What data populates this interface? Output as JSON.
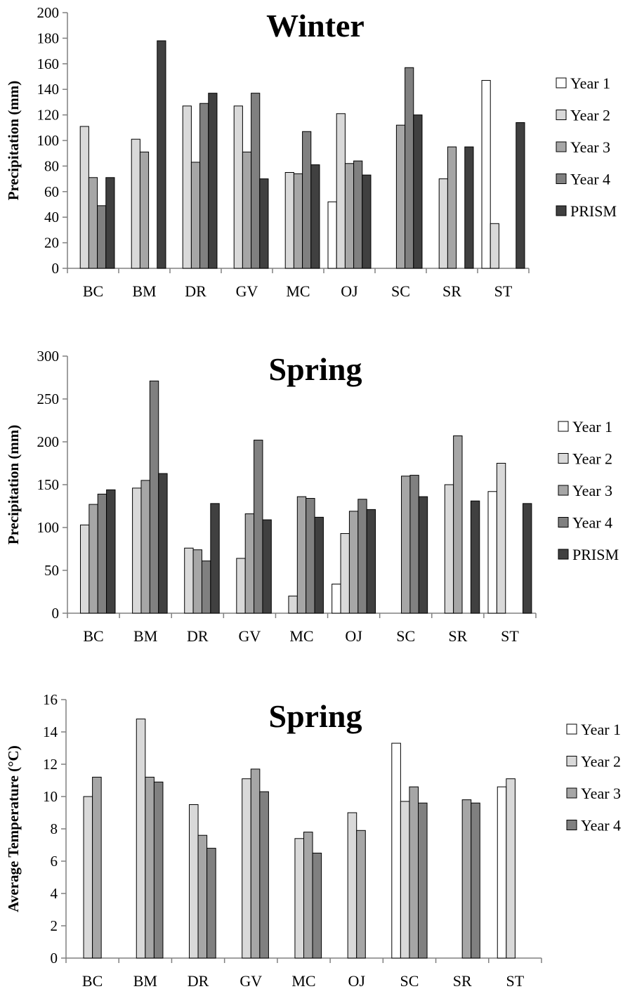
{
  "colors": {
    "Year 1": "#ffffff",
    "Year 2": "#d9d9d9",
    "Year 3": "#a6a6a6",
    "Year 4": "#808080",
    "PRISM": "#404040",
    "axis": "#808080",
    "bar_stroke": "#000000"
  },
  "chart_data": [
    {
      "type": "bar",
      "title": "Winter",
      "xlabel": "",
      "ylabel": "Precipitation (mm)",
      "ylim": [
        0,
        200
      ],
      "yticks": [
        0,
        20,
        40,
        60,
        80,
        100,
        120,
        140,
        160,
        180,
        200
      ],
      "grid": false,
      "legend_position": "right",
      "categories": [
        "BC",
        "BM",
        "DR",
        "GV",
        "MC",
        "OJ",
        "SC",
        "SR",
        "ST"
      ],
      "series": [
        {
          "name": "Year 1",
          "values": [
            null,
            null,
            null,
            null,
            null,
            52,
            null,
            null,
            147
          ]
        },
        {
          "name": "Year 2",
          "values": [
            111,
            101,
            127,
            127,
            75,
            121,
            null,
            70,
            35
          ]
        },
        {
          "name": "Year 3",
          "values": [
            71,
            91,
            83,
            91,
            74,
            82,
            112,
            95,
            null
          ]
        },
        {
          "name": "Year 4",
          "values": [
            49,
            null,
            129,
            137,
            107,
            84,
            157,
            null,
            null
          ]
        },
        {
          "name": "PRISM",
          "values": [
            71,
            178,
            137,
            70,
            81,
            73,
            120,
            95,
            114
          ]
        }
      ]
    },
    {
      "type": "bar",
      "title": "Spring",
      "xlabel": "",
      "ylabel": "Precipitation (mm)",
      "ylim": [
        0,
        300
      ],
      "yticks": [
        0,
        50,
        100,
        150,
        200,
        250,
        300
      ],
      "grid": false,
      "legend_position": "right",
      "categories": [
        "BC",
        "BM",
        "DR",
        "GV",
        "MC",
        "OJ",
        "SC",
        "SR",
        "ST"
      ],
      "series": [
        {
          "name": "Year 1",
          "values": [
            null,
            null,
            null,
            null,
            null,
            34,
            null,
            null,
            142
          ]
        },
        {
          "name": "Year 2",
          "values": [
            103,
            146,
            76,
            64,
            20,
            93,
            null,
            150,
            175
          ]
        },
        {
          "name": "Year 3",
          "values": [
            127,
            155,
            74,
            116,
            136,
            119,
            160,
            207,
            null
          ]
        },
        {
          "name": "Year 4",
          "values": [
            139,
            271,
            61,
            202,
            134,
            133,
            161,
            null,
            null
          ]
        },
        {
          "name": "PRISM",
          "values": [
            144,
            163,
            128,
            109,
            112,
            121,
            136,
            131,
            128
          ]
        }
      ]
    },
    {
      "type": "bar",
      "title": "Spring",
      "xlabel": "",
      "ylabel": "Average Temperature (°C)",
      "ylim": [
        0,
        16
      ],
      "yticks": [
        0,
        2,
        4,
        6,
        8,
        10,
        12,
        14,
        16
      ],
      "grid": false,
      "legend_position": "right",
      "categories": [
        "BC",
        "BM",
        "DR",
        "GV",
        "MC",
        "OJ",
        "SC",
        "SR",
        "ST"
      ],
      "series": [
        {
          "name": "Year 1",
          "values": [
            null,
            null,
            null,
            null,
            null,
            null,
            13.3,
            null,
            10.6
          ]
        },
        {
          "name": "Year 2",
          "values": [
            10.0,
            14.8,
            9.5,
            11.1,
            7.4,
            9.0,
            9.7,
            null,
            11.1
          ]
        },
        {
          "name": "Year 3",
          "values": [
            11.2,
            11.2,
            7.6,
            11.7,
            7.8,
            7.9,
            10.6,
            9.8,
            null
          ]
        },
        {
          "name": "Year 4",
          "values": [
            null,
            10.9,
            6.8,
            10.3,
            6.5,
            null,
            9.6,
            9.6,
            null
          ]
        }
      ]
    }
  ]
}
